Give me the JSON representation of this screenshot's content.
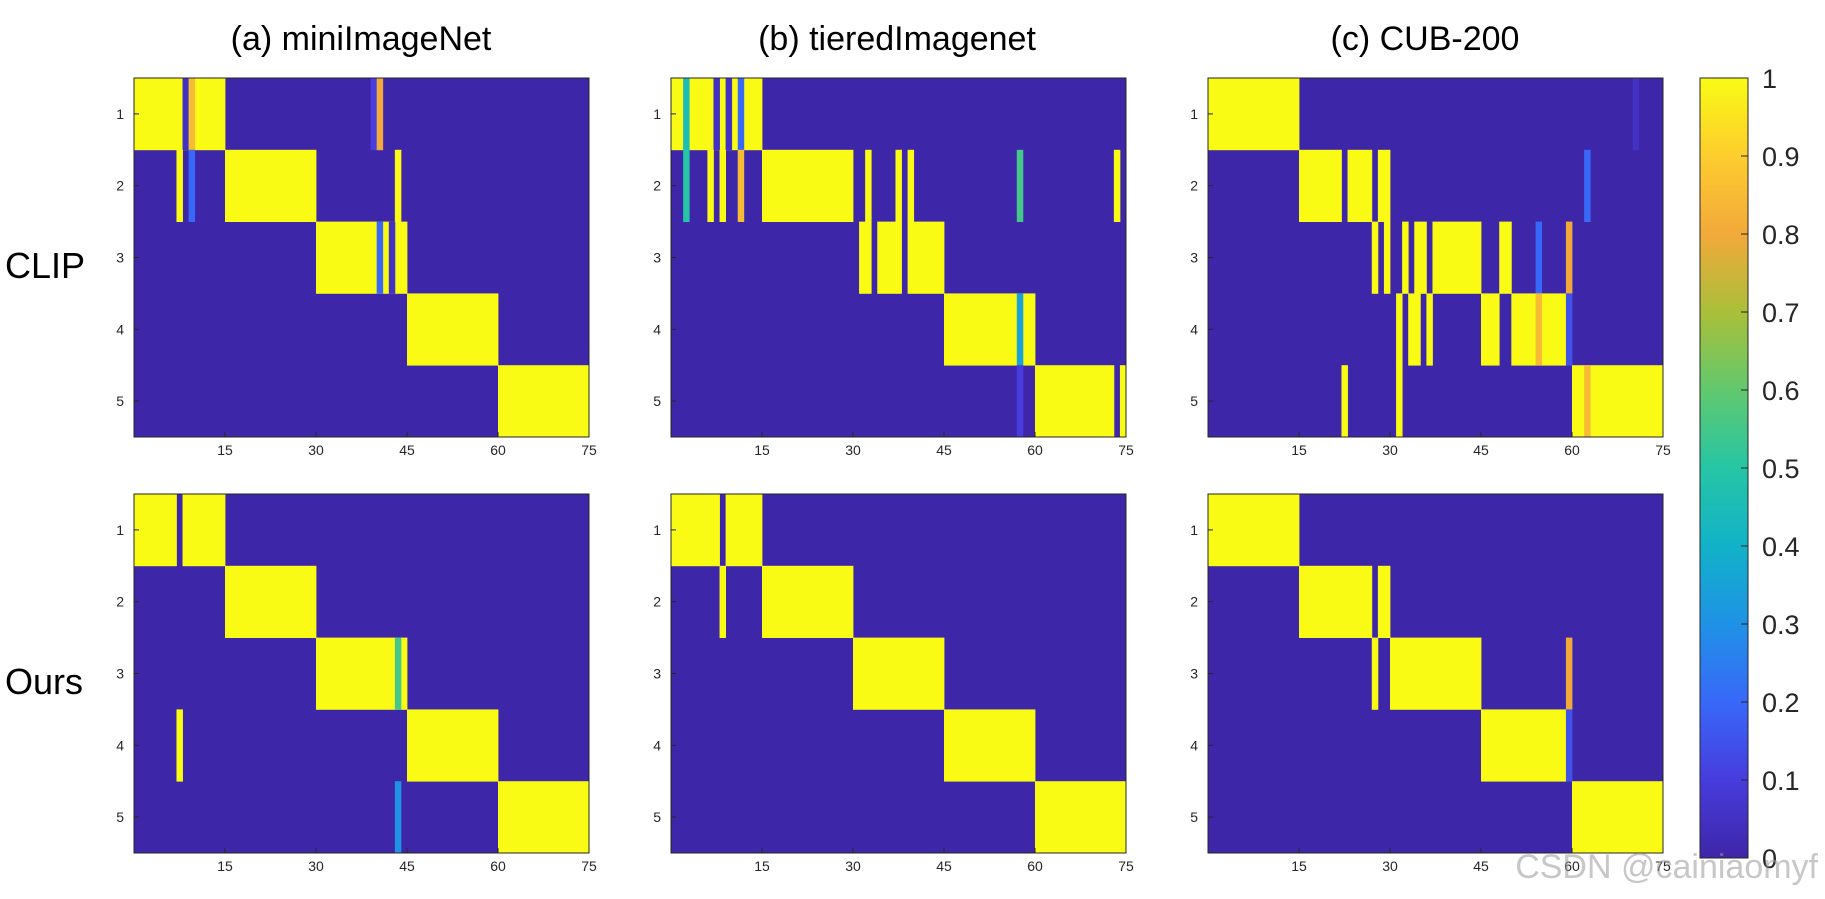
{
  "row_labels": [
    "CLIP",
    "Ours"
  ],
  "watermark": "CSDN @cainiaomyf",
  "colorbar": {
    "ticks": [
      0,
      0.1,
      0.2,
      0.3,
      0.4,
      0.5,
      0.6,
      0.7,
      0.8,
      0.9,
      1
    ],
    "labels": [
      "0",
      "0.1",
      "0.2",
      "0.3",
      "0.4",
      "0.5",
      "0.6",
      "0.7",
      "0.8",
      "0.9",
      "1"
    ],
    "colormap": "parula"
  },
  "chart_data": [
    {
      "type": "heatmap",
      "row": "CLIP",
      "column_title": "(a) miniImageNet",
      "rows": 5,
      "cols": 75,
      "background": 0,
      "x_ticks": [
        15,
        30,
        45,
        60,
        75
      ],
      "y_ticks": [
        1,
        2,
        3,
        4,
        5
      ],
      "clim": [
        0,
        1
      ],
      "cells": [
        {
          "row": 1,
          "x0": 1,
          "x1": 15,
          "v": 1
        },
        {
          "row": 1,
          "x0": 9,
          "x1": 9,
          "v": 0.05
        },
        {
          "row": 1,
          "x0": 10,
          "x1": 10,
          "v": 0.85
        },
        {
          "row": 1,
          "x0": 40,
          "x1": 40,
          "v": 0.1
        },
        {
          "row": 1,
          "x0": 41,
          "x1": 41,
          "v": 0.8
        },
        {
          "row": 2,
          "x0": 8,
          "x1": 8,
          "v": 1
        },
        {
          "row": 2,
          "x0": 10,
          "x1": 10,
          "v": 0.2
        },
        {
          "row": 2,
          "x0": 16,
          "x1": 30,
          "v": 1
        },
        {
          "row": 2,
          "x0": 44,
          "x1": 44,
          "v": 1
        },
        {
          "row": 3,
          "x0": 31,
          "x1": 45,
          "v": 1
        },
        {
          "row": 3,
          "x0": 41,
          "x1": 41,
          "v": 0.2
        },
        {
          "row": 3,
          "x0": 43,
          "x1": 43,
          "v": 0.05
        },
        {
          "row": 4,
          "x0": 46,
          "x1": 60,
          "v": 1
        },
        {
          "row": 5,
          "x0": 61,
          "x1": 75,
          "v": 1
        }
      ]
    },
    {
      "type": "heatmap",
      "row": "CLIP",
      "column_title": "(b) tieredImagenet",
      "rows": 5,
      "cols": 75,
      "background": 0,
      "x_ticks": [
        15,
        30,
        45,
        60,
        75
      ],
      "y_ticks": [
        1,
        2,
        3,
        4,
        5
      ],
      "clim": [
        0,
        1
      ],
      "cells": [
        {
          "row": 1,
          "x0": 1,
          "x1": 15,
          "v": 1
        },
        {
          "row": 1,
          "x0": 3,
          "x1": 3,
          "v": 0.45
        },
        {
          "row": 1,
          "x0": 8,
          "x1": 8,
          "v": 0.05
        },
        {
          "row": 1,
          "x0": 10,
          "x1": 10,
          "v": 0.05
        },
        {
          "row": 1,
          "x0": 12,
          "x1": 12,
          "v": 0.2
        },
        {
          "row": 2,
          "x0": 3,
          "x1": 3,
          "v": 0.5
        },
        {
          "row": 2,
          "x0": 7,
          "x1": 7,
          "v": 1
        },
        {
          "row": 2,
          "x0": 9,
          "x1": 9,
          "v": 1
        },
        {
          "row": 2,
          "x0": 12,
          "x1": 12,
          "v": 0.85
        },
        {
          "row": 2,
          "x0": 16,
          "x1": 30,
          "v": 1
        },
        {
          "row": 2,
          "x0": 33,
          "x1": 33,
          "v": 1
        },
        {
          "row": 2,
          "x0": 38,
          "x1": 38,
          "v": 1
        },
        {
          "row": 2,
          "x0": 40,
          "x1": 40,
          "v": 1
        },
        {
          "row": 2,
          "x0": 58,
          "x1": 58,
          "v": 0.55
        },
        {
          "row": 2,
          "x0": 74,
          "x1": 74,
          "v": 1
        },
        {
          "row": 3,
          "x0": 32,
          "x1": 33,
          "v": 1
        },
        {
          "row": 3,
          "x0": 35,
          "x1": 38,
          "v": 1
        },
        {
          "row": 3,
          "x0": 40,
          "x1": 45,
          "v": 1
        },
        {
          "row": 4,
          "x0": 46,
          "x1": 60,
          "v": 1
        },
        {
          "row": 4,
          "x0": 58,
          "x1": 58,
          "v": 0.35
        },
        {
          "row": 5,
          "x0": 58,
          "x1": 58,
          "v": 0.1
        },
        {
          "row": 5,
          "x0": 61,
          "x1": 73,
          "v": 1
        },
        {
          "row": 5,
          "x0": 75,
          "x1": 75,
          "v": 1
        }
      ]
    },
    {
      "type": "heatmap",
      "row": "CLIP",
      "column_title": "(c) CUB-200",
      "rows": 5,
      "cols": 75,
      "background": 0,
      "x_ticks": [
        15,
        30,
        45,
        60,
        75
      ],
      "y_ticks": [
        1,
        2,
        3,
        4,
        5
      ],
      "clim": [
        0,
        1
      ],
      "cells": [
        {
          "row": 1,
          "x0": 1,
          "x1": 15,
          "v": 1
        },
        {
          "row": 1,
          "x0": 71,
          "x1": 71,
          "v": 0.05
        },
        {
          "row": 2,
          "x0": 16,
          "x1": 22,
          "v": 1
        },
        {
          "row": 2,
          "x0": 24,
          "x1": 27,
          "v": 1
        },
        {
          "row": 2,
          "x0": 29,
          "x1": 30,
          "v": 1
        },
        {
          "row": 2,
          "x0": 63,
          "x1": 63,
          "v": 0.2
        },
        {
          "row": 3,
          "x0": 28,
          "x1": 28,
          "v": 1
        },
        {
          "row": 3,
          "x0": 30,
          "x1": 30,
          "v": 1
        },
        {
          "row": 3,
          "x0": 33,
          "x1": 33,
          "v": 1
        },
        {
          "row": 3,
          "x0": 35,
          "x1": 36,
          "v": 1
        },
        {
          "row": 3,
          "x0": 38,
          "x1": 45,
          "v": 1
        },
        {
          "row": 3,
          "x0": 49,
          "x1": 50,
          "v": 1
        },
        {
          "row": 3,
          "x0": 55,
          "x1": 55,
          "v": 0.2
        },
        {
          "row": 3,
          "x0": 60,
          "x1": 60,
          "v": 0.8
        },
        {
          "row": 4,
          "x0": 32,
          "x1": 32,
          "v": 1
        },
        {
          "row": 4,
          "x0": 34,
          "x1": 35,
          "v": 1
        },
        {
          "row": 4,
          "x0": 37,
          "x1": 37,
          "v": 1
        },
        {
          "row": 4,
          "x0": 46,
          "x1": 48,
          "v": 1
        },
        {
          "row": 4,
          "x0": 51,
          "x1": 59,
          "v": 1
        },
        {
          "row": 4,
          "x0": 55,
          "x1": 55,
          "v": 0.85
        },
        {
          "row": 4,
          "x0": 60,
          "x1": 60,
          "v": 0.15
        },
        {
          "row": 5,
          "x0": 23,
          "x1": 23,
          "v": 1
        },
        {
          "row": 5,
          "x0": 32,
          "x1": 32,
          "v": 1
        },
        {
          "row": 5,
          "x0": 61,
          "x1": 75,
          "v": 1
        },
        {
          "row": 5,
          "x0": 63,
          "x1": 63,
          "v": 0.85
        }
      ]
    },
    {
      "type": "heatmap",
      "row": "Ours",
      "column_title": "(a) miniImageNet",
      "rows": 5,
      "cols": 75,
      "background": 0,
      "x_ticks": [
        15,
        30,
        45,
        60,
        75
      ],
      "y_ticks": [
        1,
        2,
        3,
        4,
        5
      ],
      "clim": [
        0,
        1
      ],
      "cells": [
        {
          "row": 1,
          "x0": 1,
          "x1": 7,
          "v": 1
        },
        {
          "row": 1,
          "x0": 9,
          "x1": 15,
          "v": 1
        },
        {
          "row": 2,
          "x0": 16,
          "x1": 30,
          "v": 1
        },
        {
          "row": 3,
          "x0": 31,
          "x1": 45,
          "v": 1
        },
        {
          "row": 3,
          "x0": 44,
          "x1": 44,
          "v": 0.55
        },
        {
          "row": 4,
          "x0": 8,
          "x1": 8,
          "v": 1
        },
        {
          "row": 4,
          "x0": 46,
          "x1": 60,
          "v": 1
        },
        {
          "row": 5,
          "x0": 44,
          "x1": 44,
          "v": 0.3
        },
        {
          "row": 5,
          "x0": 61,
          "x1": 75,
          "v": 1
        }
      ]
    },
    {
      "type": "heatmap",
      "row": "Ours",
      "column_title": "(b) tieredImagenet",
      "rows": 5,
      "cols": 75,
      "background": 0,
      "x_ticks": [
        15,
        30,
        45,
        60,
        75
      ],
      "y_ticks": [
        1,
        2,
        3,
        4,
        5
      ],
      "clim": [
        0,
        1
      ],
      "cells": [
        {
          "row": 1,
          "x0": 1,
          "x1": 8,
          "v": 1
        },
        {
          "row": 1,
          "x0": 10,
          "x1": 15,
          "v": 1
        },
        {
          "row": 2,
          "x0": 9,
          "x1": 9,
          "v": 1
        },
        {
          "row": 2,
          "x0": 16,
          "x1": 30,
          "v": 1
        },
        {
          "row": 3,
          "x0": 31,
          "x1": 45,
          "v": 1
        },
        {
          "row": 4,
          "x0": 46,
          "x1": 60,
          "v": 1
        },
        {
          "row": 5,
          "x0": 61,
          "x1": 75,
          "v": 1
        }
      ]
    },
    {
      "type": "heatmap",
      "row": "Ours",
      "column_title": "(c) CUB-200",
      "rows": 5,
      "cols": 75,
      "background": 0,
      "x_ticks": [
        15,
        30,
        45,
        60,
        75
      ],
      "y_ticks": [
        1,
        2,
        3,
        4,
        5
      ],
      "clim": [
        0,
        1
      ],
      "cells": [
        {
          "row": 1,
          "x0": 1,
          "x1": 15,
          "v": 1
        },
        {
          "row": 2,
          "x0": 16,
          "x1": 27,
          "v": 1
        },
        {
          "row": 2,
          "x0": 29,
          "x1": 30,
          "v": 1
        },
        {
          "row": 3,
          "x0": 28,
          "x1": 28,
          "v": 1
        },
        {
          "row": 3,
          "x0": 31,
          "x1": 45,
          "v": 1
        },
        {
          "row": 3,
          "x0": 60,
          "x1": 60,
          "v": 0.8
        },
        {
          "row": 4,
          "x0": 46,
          "x1": 59,
          "v": 1
        },
        {
          "row": 4,
          "x0": 60,
          "x1": 60,
          "v": 0.15
        },
        {
          "row": 5,
          "x0": 61,
          "x1": 75,
          "v": 1
        }
      ]
    }
  ]
}
